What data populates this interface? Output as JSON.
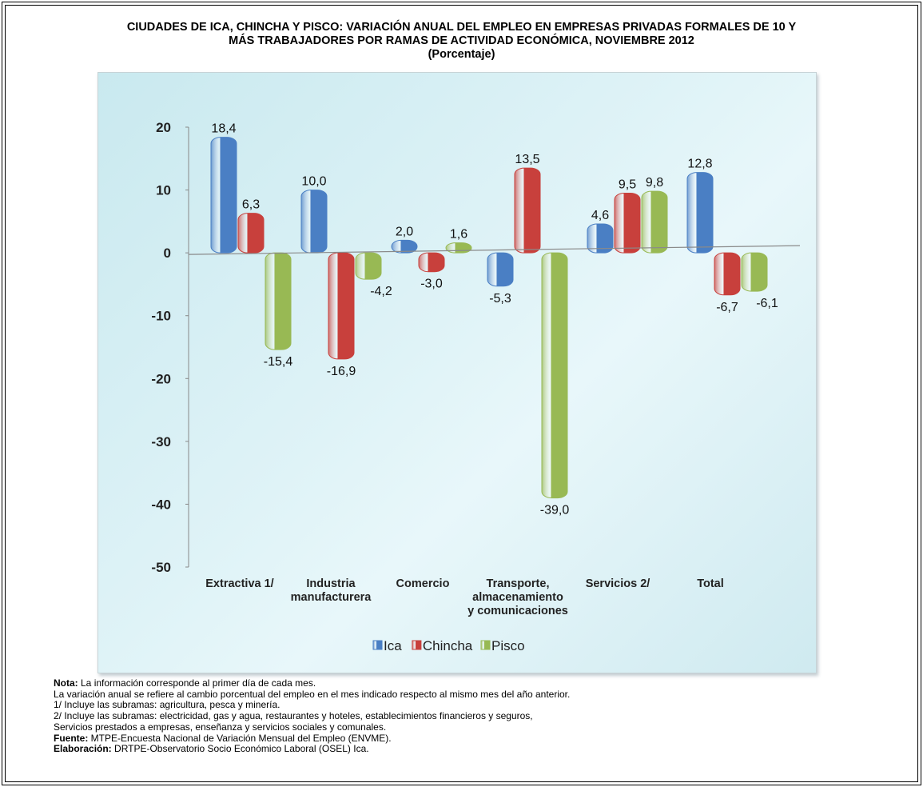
{
  "title": {
    "line1": "CIUDADES DE ICA, CHINCHA Y PISCO: VARIACIÓN ANUAL DEL EMPLEO EN EMPRESAS PRIVADAS FORMALES DE 10 Y",
    "line2": "MÁS TRABAJADORES POR RAMAS DE ACTIVIDAD ECONÓMICA, NOVIEMBRE 2012",
    "line3": "(Porcentaje)"
  },
  "chart_data": {
    "type": "bar",
    "categories": [
      [
        "Extractiva 1/"
      ],
      [
        "Industria",
        "manufacturera"
      ],
      [
        "Comercio"
      ],
      [
        "Transporte,",
        "almacenamiento",
        "y comunicaciones"
      ],
      [
        "Servicios 2/"
      ],
      [
        "Total"
      ]
    ],
    "series": [
      {
        "name": "Ica",
        "color": "#4a7fc4",
        "values": [
          18.4,
          10.0,
          2.0,
          -5.3,
          4.6,
          12.8
        ]
      },
      {
        "name": "Chincha",
        "color": "#c8403c",
        "values": [
          6.3,
          -16.9,
          -3.0,
          13.5,
          9.5,
          -6.7
        ]
      },
      {
        "name": "Pisco",
        "color": "#98b954",
        "values": [
          -15.4,
          -4.2,
          1.6,
          -39.0,
          9.8,
          -6.1
        ]
      }
    ],
    "data_labels": [
      [
        "18,4",
        "10,0",
        "2,0",
        "-5,3",
        "4,6",
        "12,8"
      ],
      [
        "6,3",
        "-16,9",
        "-3,0",
        "13,5",
        "9,5",
        "-6,7"
      ],
      [
        "-15,4",
        "-4,2",
        "1,6",
        "-39,0",
        "9,8",
        "-6,1"
      ]
    ],
    "yticks": [
      20,
      10,
      0,
      -10,
      -20,
      -30,
      -40,
      -50
    ],
    "ylim": [
      -50,
      20
    ],
    "legend_position": "bottom",
    "grid": false
  },
  "notes": {
    "nota_label": "Nota:",
    "nota_text": " La información corresponde al primer día de cada mes.",
    "line2": "La variación anual se refiere al cambio porcentual del empleo en el mes indicado respecto al mismo mes del año anterior.",
    "line3": "1/ Incluye las subramas: agricultura, pesca y minería.",
    "line4": "2/ Incluye las subramas: electricidad, gas y agua, restaurantes y hoteles, establecimientos financieros y seguros,",
    "line5": "Servicios prestados a empresas,  enseñanza y servicios sociales y comunales.",
    "fuente_label": "Fuente:",
    "fuente_text": " MTPE-Encuesta Nacional de Variación Mensual del Empleo (ENVME).",
    "elab_label": "Elaboración:",
    "elab_text": " DRTPE-Observatorio Socio Económico Laboral (OSEL) Ica."
  }
}
